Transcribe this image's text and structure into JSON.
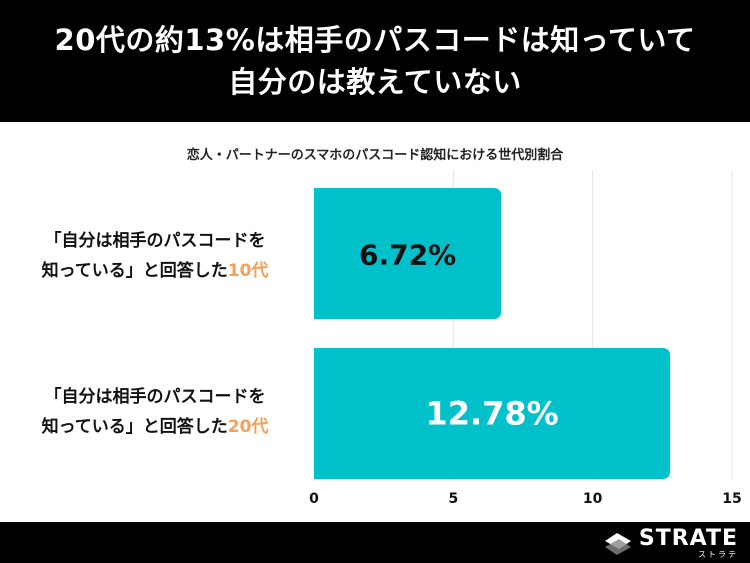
{
  "header": {
    "title_line1": "20代の約13%は相手のパスコードは知っていて",
    "title_line2": "自分のは教えていない"
  },
  "chart_data": {
    "type": "bar",
    "orientation": "horizontal",
    "title": "恋人・パートナーのスマホのパスコード認知における世代別割合",
    "categories": [
      {
        "line1": "「自分は相手のパスコードを",
        "line2_prefix": "知っている」と回答した",
        "line2_highlight": "10代"
      },
      {
        "line1": "「自分は相手のパスコードを",
        "line2_prefix": "知っている」と回答した",
        "line2_highlight": "20代"
      }
    ],
    "values": [
      6.72,
      12.78
    ],
    "value_labels": [
      "6.72%",
      "12.78%"
    ],
    "xlim": [
      0,
      15
    ],
    "xticks": [
      0,
      5,
      10,
      15
    ],
    "grid": true,
    "bar_color": "#00c1c9",
    "highlight_color": "#f4a05a"
  },
  "footer": {
    "logo_text": "STRATE",
    "logo_kana": "ストラテ"
  }
}
